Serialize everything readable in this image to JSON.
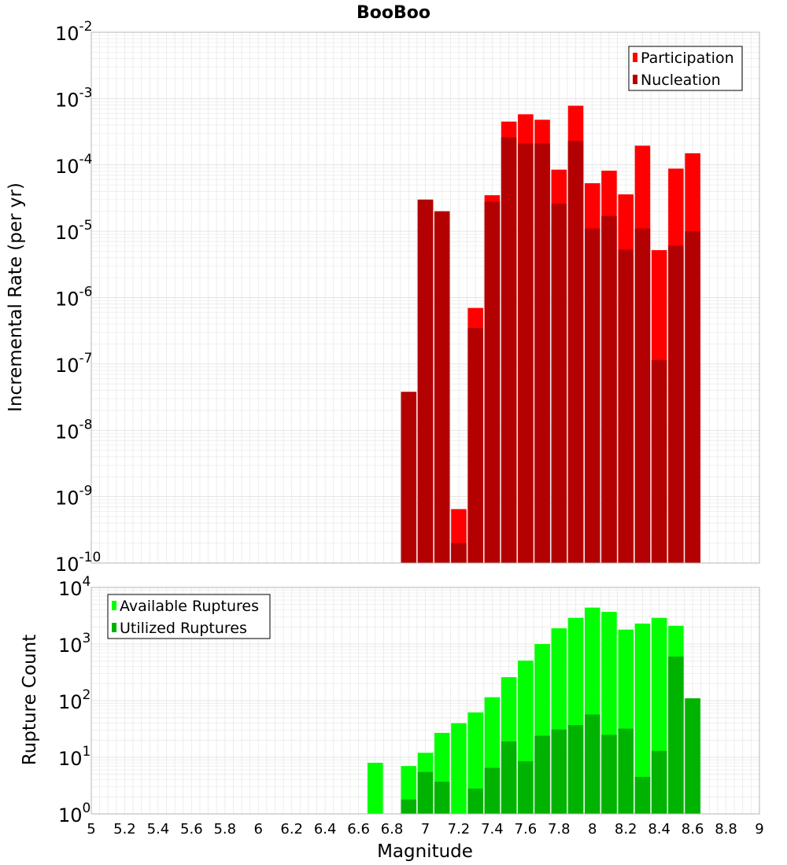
{
  "chart_data": [
    {
      "type": "bar",
      "title": "BooBoo",
      "ylabel": "Incremental Rate (per yr)",
      "xlabel": "",
      "yscale": "log",
      "ylim_exponents": [
        -10,
        -2
      ],
      "xlim": [
        5,
        9
      ],
      "grid": true,
      "legend_position": "top-right",
      "x": [
        6.9,
        7.0,
        7.1,
        7.2,
        7.3,
        7.4,
        7.5,
        7.6,
        7.7,
        7.8,
        7.9,
        8.0,
        8.1,
        8.2,
        8.3,
        8.4,
        8.5,
        8.6
      ],
      "series": [
        {
          "name": "Participation",
          "color": "#ff0000",
          "values": [
            3.8e-08,
            3e-05,
            2e-05,
            6.5e-10,
            7e-07,
            3.5e-05,
            0.00045,
            0.00058,
            0.00048,
            8.5e-05,
            0.00078,
            5.3e-05,
            8.2e-05,
            3.6e-05,
            0.000195,
            5.2e-06,
            8.8e-05,
            0.00015
          ]
        },
        {
          "name": "Nucleation",
          "color": "#b30000",
          "values": [
            3.8e-08,
            3e-05,
            2e-05,
            2e-10,
            3.5e-07,
            2.8e-05,
            0.00026,
            0.00021,
            0.00021,
            2.6e-05,
            0.00023,
            1.1e-05,
            1.7e-05,
            5.3e-06,
            1.1e-05,
            1.15e-07,
            6.1e-06,
            1e-05
          ]
        }
      ],
      "ytick_labels": [
        {
          "base": "10",
          "exp": "-10"
        },
        {
          "base": "10",
          "exp": "-9"
        },
        {
          "base": "10",
          "exp": "-8"
        },
        {
          "base": "10",
          "exp": "-7"
        },
        {
          "base": "10",
          "exp": "-6"
        },
        {
          "base": "10",
          "exp": "-5"
        },
        {
          "base": "10",
          "exp": "-4"
        },
        {
          "base": "10",
          "exp": "-3"
        },
        {
          "base": "10",
          "exp": "-2"
        }
      ]
    },
    {
      "type": "bar",
      "title": "",
      "ylabel": "Rupture Count",
      "xlabel": "Magnitude",
      "yscale": "log",
      "ylim_exponents": [
        0,
        4
      ],
      "xlim": [
        5,
        9
      ],
      "grid": true,
      "legend_position": "top-left",
      "x": [
        6.7,
        6.9,
        7.0,
        7.1,
        7.2,
        7.3,
        7.4,
        7.5,
        7.6,
        7.7,
        7.8,
        7.9,
        8.0,
        8.1,
        8.2,
        8.3,
        8.4,
        8.5,
        8.6
      ],
      "series": [
        {
          "name": "Available Ruptures",
          "color": "#00ff00",
          "values": [
            8,
            7,
            12,
            27,
            40,
            62,
            115,
            260,
            510,
            1000,
            1900,
            2900,
            4400,
            3700,
            1800,
            2300,
            2900,
            2100,
            110
          ]
        },
        {
          "name": "Utilized Ruptures",
          "color": "#00b300",
          "values": [
            0,
            1.8,
            5.5,
            3.7,
            1,
            2.8,
            6.5,
            19,
            8.5,
            24,
            31,
            37,
            57,
            25,
            32,
            4.5,
            13,
            600,
            110
          ]
        }
      ],
      "ytick_labels": [
        {
          "base": "10",
          "exp": "0"
        },
        {
          "base": "10",
          "exp": "1"
        },
        {
          "base": "10",
          "exp": "2"
        },
        {
          "base": "10",
          "exp": "3"
        },
        {
          "base": "10",
          "exp": "4"
        }
      ],
      "xtick_labels": [
        "5",
        "5.2",
        "5.4",
        "5.6",
        "5.8",
        "6",
        "6.2",
        "6.4",
        "6.6",
        "6.8",
        "7",
        "7.2",
        "7.4",
        "7.6",
        "7.8",
        "8",
        "8.2",
        "8.4",
        "8.6",
        "8.8",
        "9"
      ]
    }
  ]
}
